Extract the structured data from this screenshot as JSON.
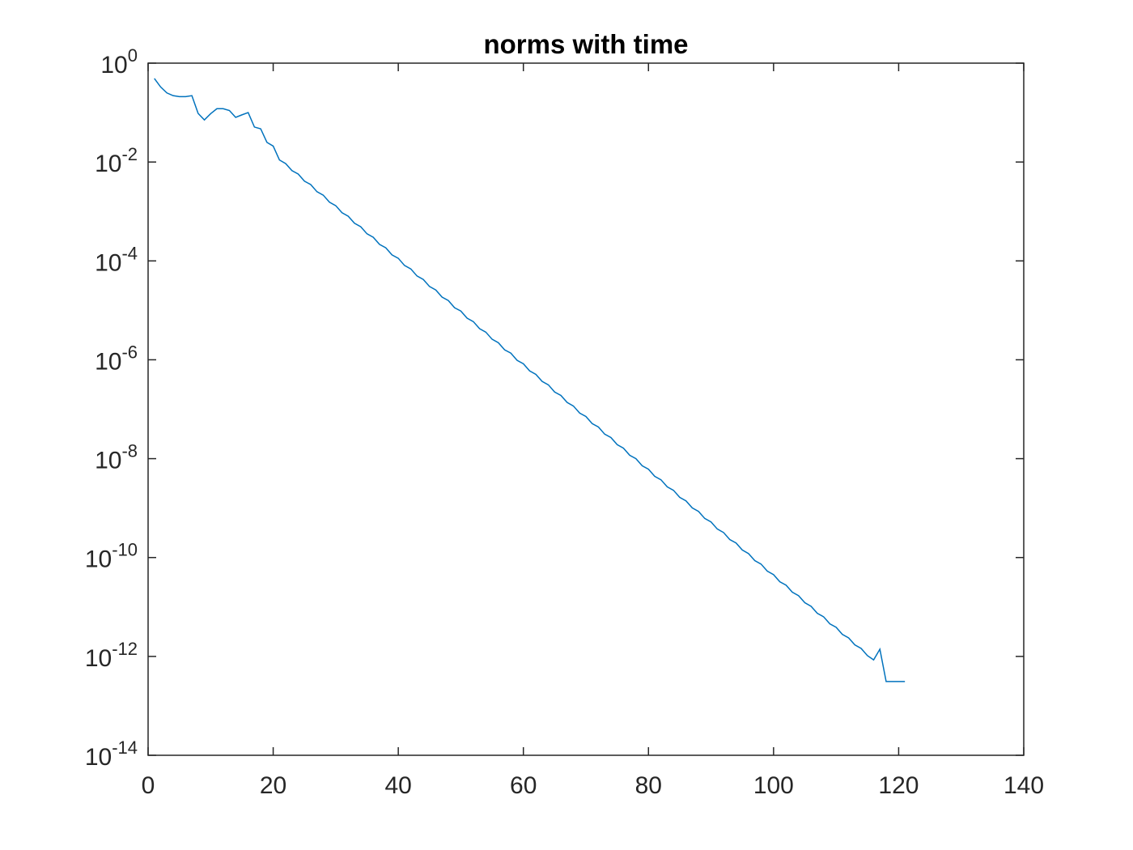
{
  "chart_data": {
    "type": "line",
    "title": "norms with time",
    "log_y": true,
    "grid": false,
    "x": [
      1,
      2,
      3,
      4,
      5,
      6,
      7,
      8,
      9,
      10,
      11,
      12,
      13,
      14,
      15,
      16,
      17,
      18,
      19,
      20,
      21,
      22,
      23,
      24,
      25,
      26,
      27,
      28,
      29,
      30,
      31,
      32,
      33,
      34,
      35,
      36,
      37,
      38,
      39,
      40,
      41,
      42,
      43,
      44,
      45,
      46,
      47,
      48,
      49,
      50,
      51,
      52,
      53,
      54,
      55,
      56,
      57,
      58,
      59,
      60,
      61,
      62,
      63,
      64,
      65,
      66,
      67,
      68,
      69,
      70,
      71,
      72,
      73,
      74,
      75,
      76,
      77,
      78,
      79,
      80,
      81,
      82,
      83,
      84,
      85,
      86,
      87,
      88,
      89,
      90,
      91,
      92,
      93,
      94,
      95,
      96,
      97,
      98,
      99,
      100,
      101,
      102,
      103,
      104,
      105,
      106,
      107,
      108,
      109,
      110,
      111,
      112,
      113,
      114,
      115,
      116,
      117,
      118,
      119,
      120,
      121
    ],
    "series": [
      {
        "color": "#0072BD",
        "values": [
          0.49,
          0.33,
          0.25,
          0.22,
          0.21,
          0.21,
          0.22,
          0.096,
          0.071,
          0.095,
          0.12,
          0.12,
          0.11,
          0.08,
          0.09,
          0.1,
          0.051,
          0.047,
          0.025,
          0.021,
          0.011,
          0.0093,
          0.00671,
          0.00571,
          0.00411,
          0.0035,
          0.00251,
          0.00214,
          0.00154,
          0.00131,
          0.000942,
          0.000802,
          0.000577,
          0.000491,
          0.000353,
          0.0003,
          0.000216,
          0.000184,
          0.000132,
          0.000113,
          8.08e-05,
          6.89e-05,
          4.95e-05,
          4.21e-05,
          3.03e-05,
          2.58e-05,
          1.85e-05,
          1.58e-05,
          1.13e-05,
          9.66e-06,
          6.94e-06,
          5.91e-06,
          4.25e-06,
          3.62e-06,
          2.6e-06,
          2.21e-06,
          1.59e-06,
          1.36e-06,
          9.73e-07,
          8.29e-07,
          5.96e-07,
          5.07e-07,
          3.65e-07,
          3.11e-07,
          2.23e-07,
          1.9e-07,
          1.37e-07,
          1.16e-07,
          8.36e-08,
          7.12e-08,
          5.12e-08,
          4.36e-08,
          3.13e-08,
          2.67e-08,
          1.92e-08,
          1.63e-08,
          1.17e-08,
          9.98e-09,
          7.18e-09,
          6.11e-09,
          4.4e-09,
          3.74e-09,
          2.69e-09,
          2.29e-09,
          1.65e-09,
          1.4e-09,
          1.01e-09,
          8.57e-10,
          6.17e-10,
          5.25e-10,
          3.78e-10,
          3.21e-10,
          2.31e-10,
          1.97e-10,
          1.42e-10,
          1.2e-10,
          8.66e-11,
          7.37e-11,
          5.3e-11,
          4.51e-11,
          3.24e-11,
          2.76e-11,
          1.99e-11,
          1.69e-11,
          1.22e-11,
          1.03e-11,
          7.44e-12,
          6.33e-12,
          4.55e-12,
          3.88e-12,
          2.79e-12,
          2.37e-12,
          1.71e-12,
          1.45e-12,
          1.04e-12,
          8.5e-13,
          1.4e-12,
          3.1e-13,
          3.1e-13,
          3.1e-13,
          3.1e-13
        ]
      }
    ],
    "xlim": [
      0,
      140
    ],
    "xticks": [
      0,
      20,
      40,
      60,
      80,
      100,
      120,
      140
    ],
    "ylim": [
      1e-14,
      1
    ],
    "yticks": [
      {
        "value": 1e-14,
        "label": {
          "base": "10",
          "exponent": "-14"
        }
      },
      {
        "value": 1e-12,
        "label": {
          "base": "10",
          "exponent": "-12"
        }
      },
      {
        "value": 1e-10,
        "label": {
          "base": "10",
          "exponent": "-10"
        }
      },
      {
        "value": 1e-08,
        "label": {
          "base": "10",
          "exponent": "-8"
        }
      },
      {
        "value": 1e-06,
        "label": {
          "base": "10",
          "exponent": "-6"
        }
      },
      {
        "value": 0.0001,
        "label": {
          "base": "10",
          "exponent": "-4"
        }
      },
      {
        "value": 0.01,
        "label": {
          "base": "10",
          "exponent": "-2"
        }
      },
      {
        "value": 1,
        "label": {
          "base": "10",
          "exponent": "0"
        }
      }
    ]
  }
}
